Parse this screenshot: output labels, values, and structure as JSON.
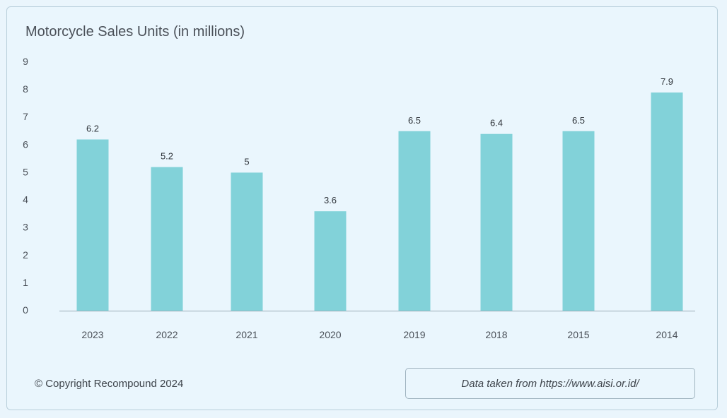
{
  "chart_data": {
    "type": "bar",
    "title": "Motorcycle Sales Units (in millions)",
    "categories": [
      "2023",
      "2022",
      "2021",
      "2020",
      "2019",
      "2018",
      "2015",
      "2014"
    ],
    "values": [
      6.2,
      5.2,
      5,
      3.6,
      6.5,
      6.4,
      6.5,
      7.9
    ],
    "data_labels": [
      "6.2",
      "5.2",
      "5",
      "3.6",
      "6.5",
      "6.4",
      "6.5",
      "7.9"
    ],
    "y_ticks": [
      0,
      1,
      2,
      3,
      4,
      5,
      6,
      7,
      8,
      9
    ],
    "ylim": [
      0,
      9
    ],
    "grid": false,
    "bar_color": "#82d2d9"
  },
  "footer": {
    "copyright": "© Copyright Recompound 2024",
    "source": "Data taken from https://www.aisi.or.id/"
  }
}
